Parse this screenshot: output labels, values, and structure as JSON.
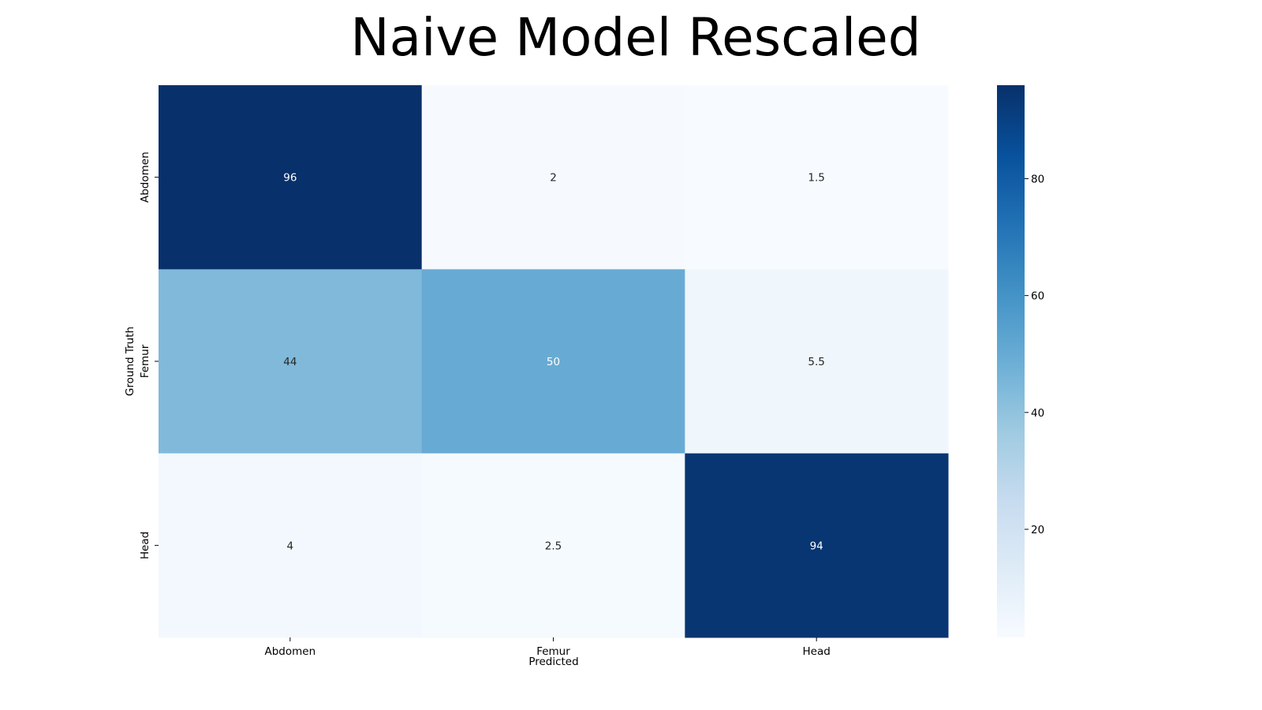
{
  "chart_data": {
    "type": "heatmap",
    "title": "Naive Model Rescaled",
    "xlabel": "Predicted",
    "ylabel": "Ground Truth",
    "x_categories": [
      "Abdomen",
      "Femur",
      "Head"
    ],
    "y_categories": [
      "Abdomen",
      "Femur",
      "Head"
    ],
    "values": [
      [
        96,
        2,
        1.5
      ],
      [
        44,
        50,
        5.5
      ],
      [
        4,
        2.5,
        94
      ]
    ],
    "cell_labels": [
      [
        "96",
        "2",
        "1.5"
      ],
      [
        "44",
        "50",
        "5.5"
      ],
      [
        "4",
        "2.5",
        "94"
      ]
    ],
    "colormap": "Blues",
    "colorbar": {
      "range": [
        1.5,
        96
      ],
      "ticks": [
        20,
        40,
        60,
        80
      ],
      "tick_labels": [
        "20",
        "40",
        "60",
        "80"
      ]
    }
  }
}
